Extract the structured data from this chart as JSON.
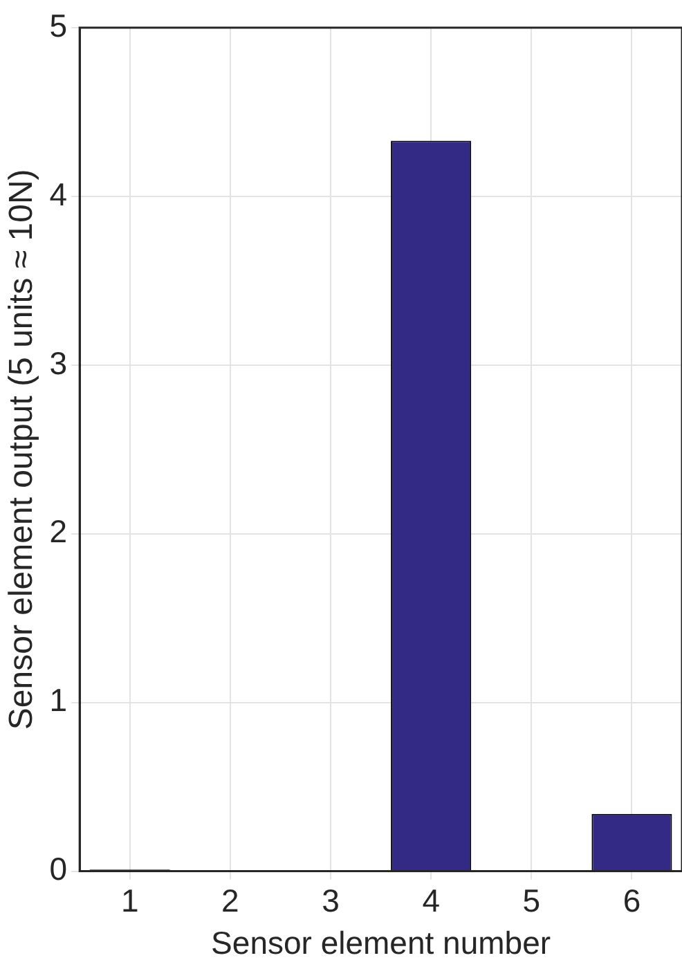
{
  "chart_data": {
    "type": "bar",
    "xlabel": "Sensor element number",
    "ylabel": "Sensor element output (5 units ≈ 10N)",
    "categories": [
      "1",
      "2",
      "3",
      "4",
      "5",
      "6"
    ],
    "values": [
      0.01,
      0,
      0,
      4.33,
      0,
      0.34
    ],
    "color": "#332a85",
    "ylim": [
      0,
      5
    ],
    "yticks": [
      0,
      1,
      2,
      3,
      4,
      5
    ],
    "grid": true
  }
}
